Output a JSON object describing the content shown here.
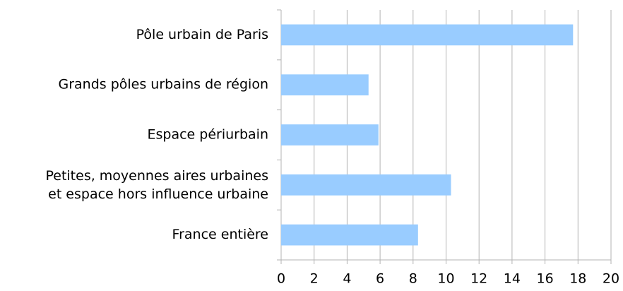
{
  "chart_data": {
    "type": "bar",
    "orientation": "horizontal",
    "categories": [
      "Pôle urbain de Paris",
      "Grands pôles urbains de région",
      "Espace périurbain",
      "Petites, moyennes aires urbaines\net espace hors influence urbaine",
      "France entière"
    ],
    "values": [
      17.7,
      5.3,
      5.9,
      10.3,
      8.3
    ],
    "color": "#99ccff",
    "xlim": [
      0,
      20
    ],
    "xticks": [
      0,
      2,
      4,
      6,
      8,
      10,
      12,
      14,
      16,
      18,
      20
    ],
    "grid": true
  }
}
